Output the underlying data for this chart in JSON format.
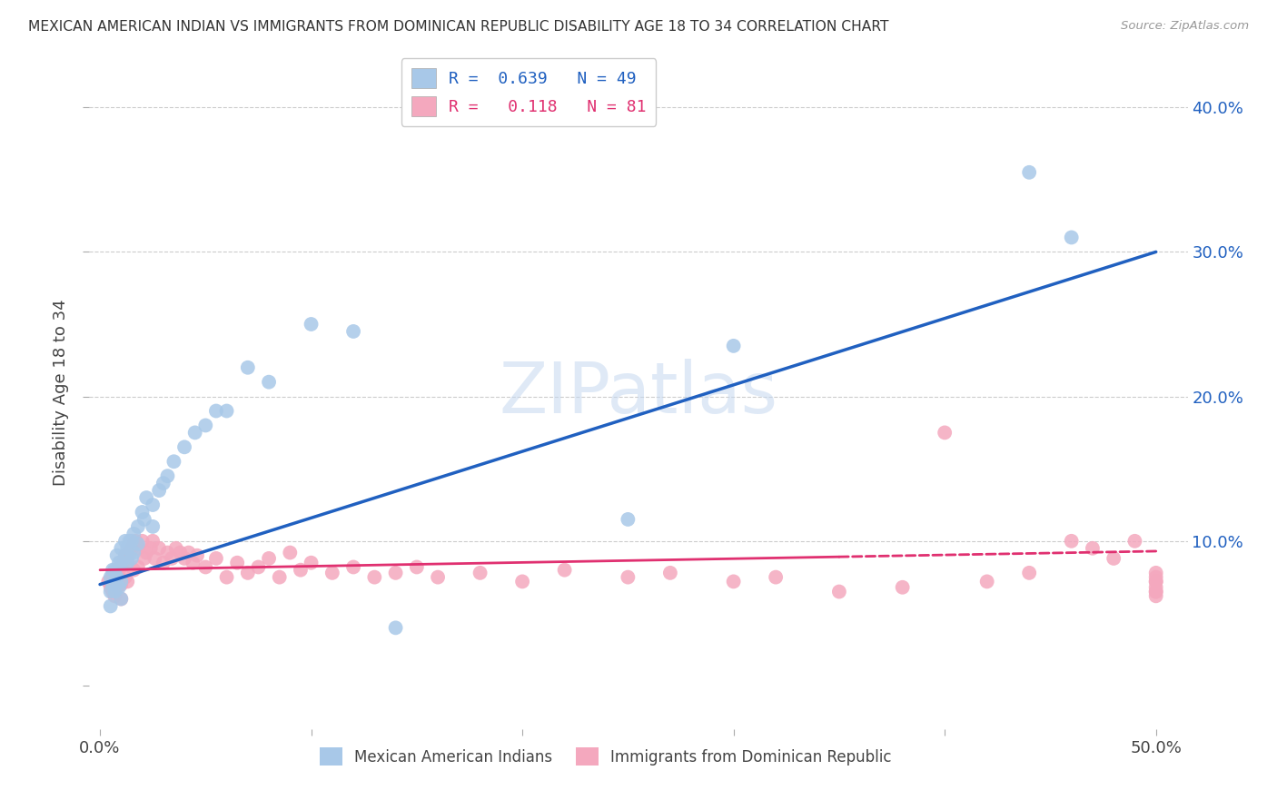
{
  "title": "MEXICAN AMERICAN INDIAN VS IMMIGRANTS FROM DOMINICAN REPUBLIC DISABILITY AGE 18 TO 34 CORRELATION CHART",
  "source": "Source: ZipAtlas.com",
  "ylabel": "Disability Age 18 to 34",
  "blue_R": 0.639,
  "blue_N": 49,
  "pink_R": 0.118,
  "pink_N": 81,
  "blue_color": "#a8c8e8",
  "pink_color": "#f4a8be",
  "blue_line_color": "#2060c0",
  "pink_line_color": "#e03070",
  "watermark_color": "#c5d8f0",
  "background_color": "#ffffff",
  "grid_color": "#cccccc",
  "blue_scatter_x": [
    0.005,
    0.005,
    0.005,
    0.006,
    0.006,
    0.007,
    0.007,
    0.008,
    0.008,
    0.009,
    0.009,
    0.01,
    0.01,
    0.01,
    0.01,
    0.012,
    0.012,
    0.013,
    0.013,
    0.014,
    0.015,
    0.015,
    0.016,
    0.016,
    0.018,
    0.018,
    0.02,
    0.021,
    0.022,
    0.025,
    0.025,
    0.028,
    0.03,
    0.032,
    0.035,
    0.04,
    0.045,
    0.05,
    0.055,
    0.06,
    0.07,
    0.08,
    0.1,
    0.12,
    0.14,
    0.25,
    0.3,
    0.44,
    0.46
  ],
  "blue_scatter_y": [
    0.075,
    0.065,
    0.055,
    0.08,
    0.07,
    0.08,
    0.065,
    0.09,
    0.075,
    0.085,
    0.068,
    0.095,
    0.085,
    0.072,
    0.06,
    0.1,
    0.09,
    0.095,
    0.085,
    0.1,
    0.1,
    0.088,
    0.105,
    0.092,
    0.11,
    0.098,
    0.12,
    0.115,
    0.13,
    0.125,
    0.11,
    0.135,
    0.14,
    0.145,
    0.155,
    0.165,
    0.175,
    0.18,
    0.19,
    0.19,
    0.22,
    0.21,
    0.25,
    0.245,
    0.04,
    0.115,
    0.235,
    0.355,
    0.31
  ],
  "pink_scatter_x": [
    0.004,
    0.005,
    0.006,
    0.006,
    0.007,
    0.007,
    0.008,
    0.008,
    0.009,
    0.01,
    0.01,
    0.01,
    0.011,
    0.012,
    0.012,
    0.013,
    0.013,
    0.014,
    0.015,
    0.016,
    0.016,
    0.017,
    0.018,
    0.018,
    0.02,
    0.021,
    0.022,
    0.024,
    0.025,
    0.026,
    0.028,
    0.03,
    0.032,
    0.034,
    0.036,
    0.038,
    0.04,
    0.042,
    0.044,
    0.046,
    0.05,
    0.055,
    0.06,
    0.065,
    0.07,
    0.075,
    0.08,
    0.085,
    0.09,
    0.095,
    0.1,
    0.11,
    0.12,
    0.13,
    0.14,
    0.15,
    0.16,
    0.18,
    0.2,
    0.22,
    0.25,
    0.27,
    0.3,
    0.32,
    0.35,
    0.38,
    0.4,
    0.42,
    0.44,
    0.46,
    0.47,
    0.48,
    0.49,
    0.5,
    0.5,
    0.5,
    0.5,
    0.5,
    0.5,
    0.5,
    0.5
  ],
  "pink_scatter_y": [
    0.072,
    0.068,
    0.076,
    0.065,
    0.078,
    0.062,
    0.08,
    0.068,
    0.075,
    0.082,
    0.07,
    0.06,
    0.085,
    0.09,
    0.075,
    0.088,
    0.072,
    0.092,
    0.095,
    0.098,
    0.08,
    0.1,
    0.095,
    0.082,
    0.1,
    0.088,
    0.092,
    0.095,
    0.1,
    0.088,
    0.095,
    0.085,
    0.092,
    0.088,
    0.095,
    0.092,
    0.088,
    0.092,
    0.085,
    0.09,
    0.082,
    0.088,
    0.075,
    0.085,
    0.078,
    0.082,
    0.088,
    0.075,
    0.092,
    0.08,
    0.085,
    0.078,
    0.082,
    0.075,
    0.078,
    0.082,
    0.075,
    0.078,
    0.072,
    0.08,
    0.075,
    0.078,
    0.072,
    0.075,
    0.065,
    0.068,
    0.175,
    0.072,
    0.078,
    0.1,
    0.095,
    0.088,
    0.1,
    0.065,
    0.062,
    0.072,
    0.078,
    0.075,
    0.068,
    0.072,
    0.065
  ],
  "xlim": [
    -0.005,
    0.515
  ],
  "ylim": [
    -0.03,
    0.435
  ],
  "blue_line_x0": 0.0,
  "blue_line_y0": 0.07,
  "blue_line_x1": 0.5,
  "blue_line_y1": 0.3,
  "pink_line_x0": 0.0,
  "pink_line_y0": 0.08,
  "pink_line_x1": 0.5,
  "pink_line_y1": 0.093,
  "watermark": "ZIPatlas"
}
